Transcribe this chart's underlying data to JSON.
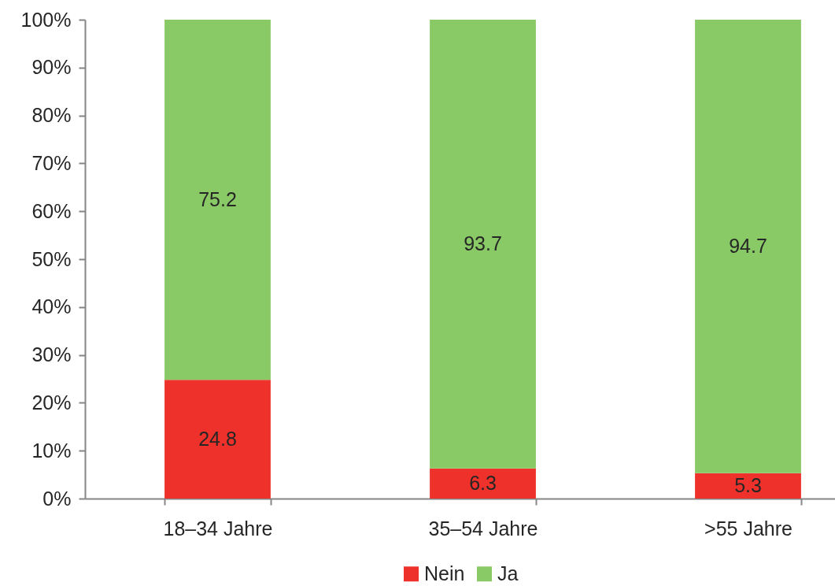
{
  "chart_data": {
    "type": "bar",
    "stacked": true,
    "categories": [
      "18–34 Jahre",
      "35–54 Jahre",
      ">55 Jahre"
    ],
    "series": [
      {
        "name": "Nein",
        "color": "#ee312a",
        "values": [
          24.8,
          6.3,
          5.3
        ]
      },
      {
        "name": "Ja",
        "color": "#89c966",
        "values": [
          75.2,
          93.7,
          94.7
        ]
      }
    ],
    "ylim": [
      0,
      100
    ],
    "yticks": [
      {
        "value": 0,
        "label": "0%"
      },
      {
        "value": 10,
        "label": "10%"
      },
      {
        "value": 20,
        "label": "20%"
      },
      {
        "value": 30,
        "label": "30%"
      },
      {
        "value": 40,
        "label": "40%"
      },
      {
        "value": 50,
        "label": "50%"
      },
      {
        "value": 60,
        "label": "60%"
      },
      {
        "value": 70,
        "label": "70%"
      },
      {
        "value": 80,
        "label": "80%"
      },
      {
        "value": 90,
        "label": "90%"
      },
      {
        "value": 100,
        "label": "100%"
      }
    ],
    "data_labels": true,
    "legend": "bottom"
  }
}
